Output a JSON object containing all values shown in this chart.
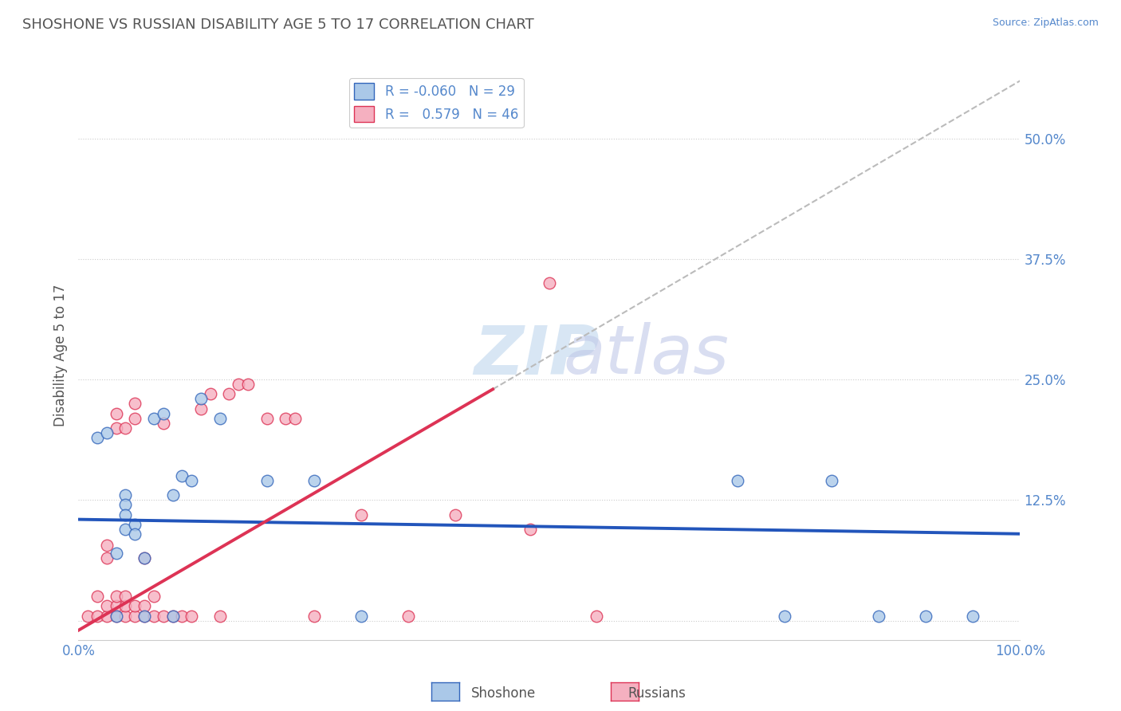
{
  "title": "SHOSHONE VS RUSSIAN DISABILITY AGE 5 TO 17 CORRELATION CHART",
  "source_text": "Source: ZipAtlas.com",
  "ylabel": "Disability Age 5 to 17",
  "xlim": [
    0.0,
    1.0
  ],
  "ylim": [
    -0.02,
    0.57
  ],
  "yticks": [
    0.0,
    0.125,
    0.25,
    0.375,
    0.5
  ],
  "ytick_labels": [
    "",
    "12.5%",
    "25.0%",
    "37.5%",
    "50.0%"
  ],
  "xtick_vals": [
    0.0,
    0.1,
    0.2,
    0.3,
    0.4,
    0.5,
    0.6,
    0.7,
    0.8,
    0.9,
    1.0
  ],
  "xtick_labels": [
    "0.0%",
    "",
    "",
    "",
    "",
    "",
    "",
    "",
    "",
    "",
    "100.0%"
  ],
  "legend_r_shoshone": "-0.060",
  "legend_n_shoshone": "29",
  "legend_r_russian": "0.579",
  "legend_n_russian": "46",
  "shoshone_fill": "#aac8e8",
  "russian_fill": "#f5b0c0",
  "shoshone_edge": "#3366bb",
  "russian_edge": "#dd3355",
  "shoshone_line_color": "#2255bb",
  "russian_line_color": "#dd3355",
  "dash_color": "#bbbbbb",
  "background_color": "#ffffff",
  "grid_color": "#cccccc",
  "title_color": "#555555",
  "tick_color": "#5588cc",
  "ylabel_color": "#555555",
  "watermark_zip_color": "#c8dcf0",
  "watermark_atlas_color": "#c0c8e8",
  "shoshone_points": [
    [
      0.02,
      0.19
    ],
    [
      0.03,
      0.195
    ],
    [
      0.04,
      0.005
    ],
    [
      0.04,
      0.07
    ],
    [
      0.05,
      0.13
    ],
    [
      0.05,
      0.12
    ],
    [
      0.05,
      0.11
    ],
    [
      0.05,
      0.095
    ],
    [
      0.06,
      0.1
    ],
    [
      0.06,
      0.09
    ],
    [
      0.07,
      0.005
    ],
    [
      0.07,
      0.065
    ],
    [
      0.08,
      0.21
    ],
    [
      0.09,
      0.215
    ],
    [
      0.1,
      0.005
    ],
    [
      0.1,
      0.13
    ],
    [
      0.11,
      0.15
    ],
    [
      0.12,
      0.145
    ],
    [
      0.13,
      0.23
    ],
    [
      0.15,
      0.21
    ],
    [
      0.2,
      0.145
    ],
    [
      0.25,
      0.145
    ],
    [
      0.3,
      0.005
    ],
    [
      0.7,
      0.145
    ],
    [
      0.75,
      0.005
    ],
    [
      0.8,
      0.145
    ],
    [
      0.85,
      0.005
    ],
    [
      0.9,
      0.005
    ],
    [
      0.95,
      0.005
    ]
  ],
  "russian_points": [
    [
      0.01,
      0.005
    ],
    [
      0.02,
      0.005
    ],
    [
      0.02,
      0.025
    ],
    [
      0.03,
      0.005
    ],
    [
      0.03,
      0.015
    ],
    [
      0.03,
      0.065
    ],
    [
      0.03,
      0.078
    ],
    [
      0.04,
      0.005
    ],
    [
      0.04,
      0.015
    ],
    [
      0.04,
      0.025
    ],
    [
      0.04,
      0.2
    ],
    [
      0.04,
      0.215
    ],
    [
      0.05,
      0.005
    ],
    [
      0.05,
      0.015
    ],
    [
      0.05,
      0.025
    ],
    [
      0.05,
      0.2
    ],
    [
      0.06,
      0.005
    ],
    [
      0.06,
      0.015
    ],
    [
      0.06,
      0.21
    ],
    [
      0.06,
      0.225
    ],
    [
      0.07,
      0.005
    ],
    [
      0.07,
      0.015
    ],
    [
      0.07,
      0.065
    ],
    [
      0.08,
      0.005
    ],
    [
      0.08,
      0.025
    ],
    [
      0.09,
      0.005
    ],
    [
      0.09,
      0.205
    ],
    [
      0.1,
      0.005
    ],
    [
      0.11,
      0.005
    ],
    [
      0.12,
      0.005
    ],
    [
      0.13,
      0.22
    ],
    [
      0.14,
      0.235
    ],
    [
      0.15,
      0.005
    ],
    [
      0.16,
      0.235
    ],
    [
      0.17,
      0.245
    ],
    [
      0.18,
      0.245
    ],
    [
      0.2,
      0.21
    ],
    [
      0.22,
      0.21
    ],
    [
      0.23,
      0.21
    ],
    [
      0.25,
      0.005
    ],
    [
      0.3,
      0.11
    ],
    [
      0.4,
      0.11
    ],
    [
      0.5,
      0.35
    ],
    [
      0.48,
      0.095
    ],
    [
      0.55,
      0.005
    ],
    [
      0.35,
      0.005
    ]
  ],
  "trend_shoshone": [
    0.0,
    1.0,
    0.105,
    0.09
  ],
  "trend_russian_solid": [
    0.0,
    0.44,
    -0.01,
    0.24
  ],
  "trend_russian_dash": [
    0.44,
    1.0,
    0.24,
    0.56
  ]
}
